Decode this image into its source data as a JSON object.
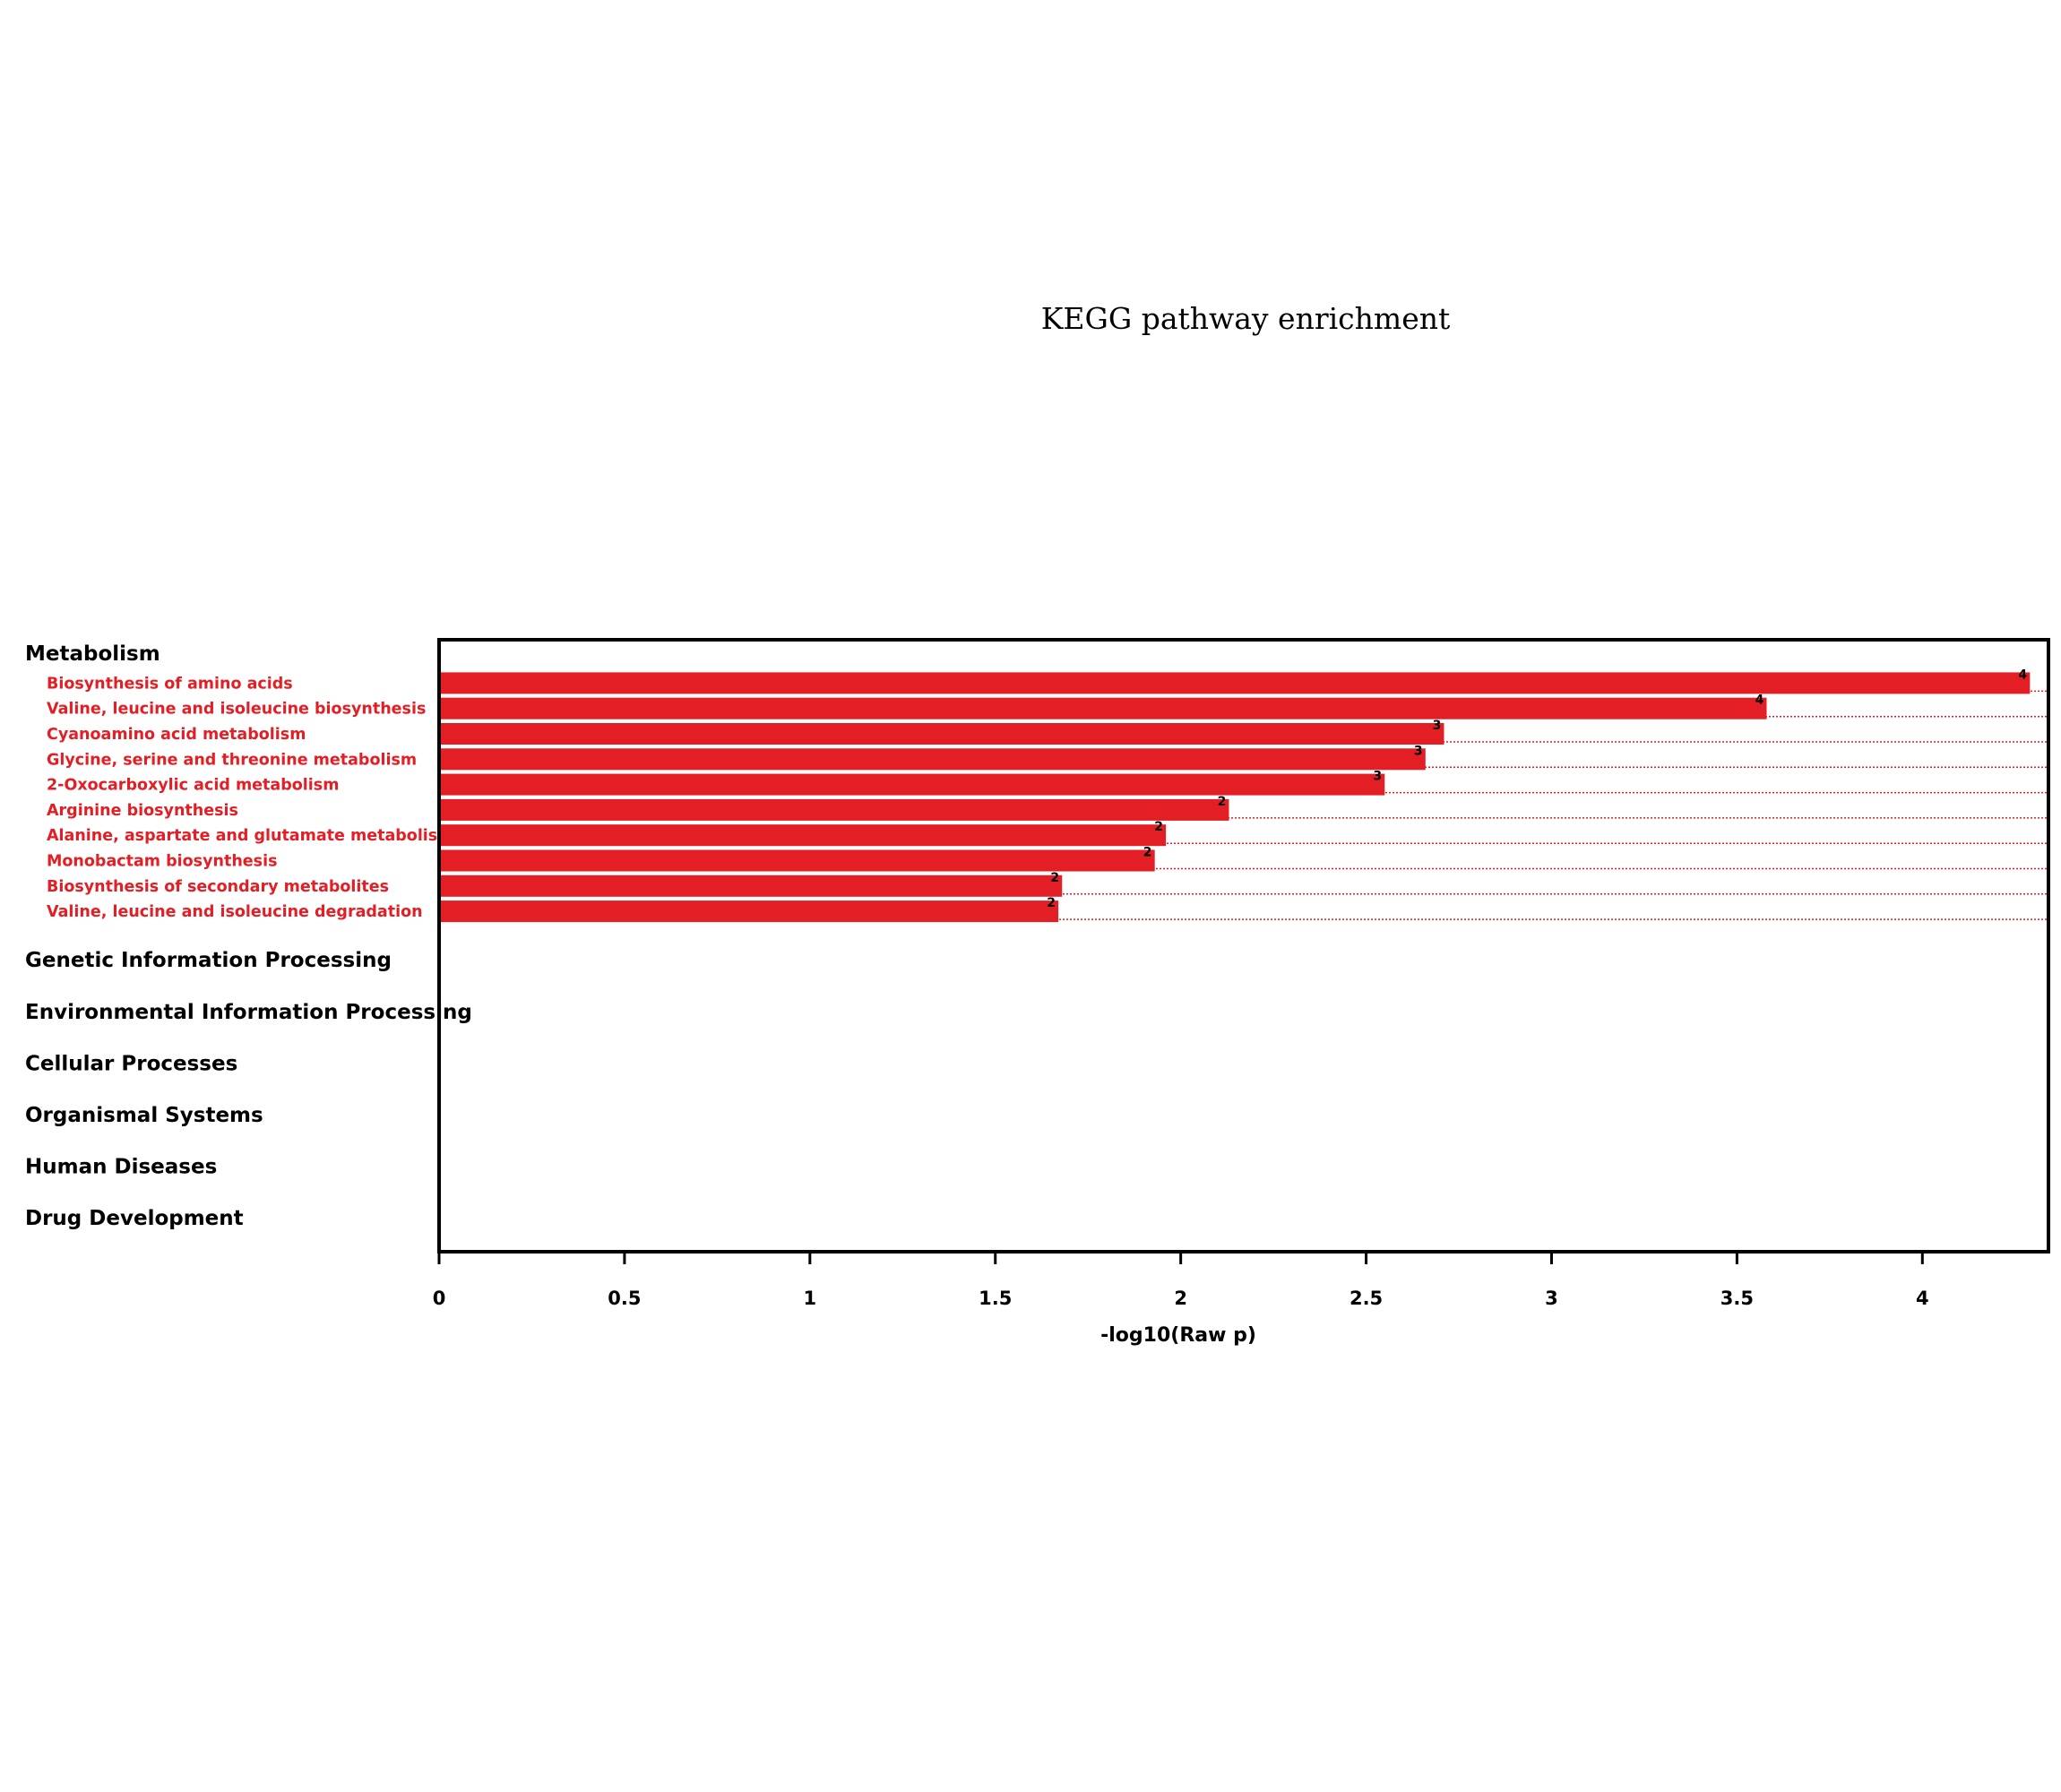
{
  "chart_data": {
    "type": "bar",
    "orientation": "horizontal",
    "title": "KEGG pathway enrichment",
    "xlabel": "-log10(Raw p)",
    "xlim": [
      0,
      4.34
    ],
    "xticks": [
      "0",
      "0.5",
      "1",
      "1.5",
      "2",
      "2.5",
      "3",
      "3.5",
      "4"
    ],
    "bar_color": "#e31e24",
    "label_color": "#e31e24",
    "groups": [
      {
        "name": "Metabolism",
        "items": [
          {
            "label": "Biosynthesis of amino acids",
            "value": 4.29,
            "count": "4"
          },
          {
            "label": "Valine, leucine and isoleucine biosynthesis",
            "value": 3.58,
            "count": "4"
          },
          {
            "label": "Cyanoamino acid metabolism",
            "value": 2.71,
            "count": "3"
          },
          {
            "label": "Glycine, serine and threonine metabolism",
            "value": 2.66,
            "count": "3"
          },
          {
            "label": "2-Oxocarboxylic acid metabolism",
            "value": 2.55,
            "count": "3"
          },
          {
            "label": "Arginine biosynthesis",
            "value": 2.13,
            "count": "2"
          },
          {
            "label": "Alanine, aspartate and glutamate metabolism",
            "value": 1.96,
            "count": "2"
          },
          {
            "label": "Monobactam biosynthesis",
            "value": 1.93,
            "count": "2"
          },
          {
            "label": "Biosynthesis of secondary metabolites",
            "value": 1.68,
            "count": "2"
          },
          {
            "label": "Valine, leucine and isoleucine degradation",
            "value": 1.67,
            "count": "2"
          }
        ]
      },
      {
        "name": "Genetic Information Processing",
        "items": []
      },
      {
        "name": "Environmental Information Processing",
        "items": []
      },
      {
        "name": "Cellular Processes",
        "items": []
      },
      {
        "name": "Organismal Systems",
        "items": []
      },
      {
        "name": "Human Diseases",
        "items": []
      },
      {
        "name": "Drug Development",
        "items": []
      }
    ]
  }
}
